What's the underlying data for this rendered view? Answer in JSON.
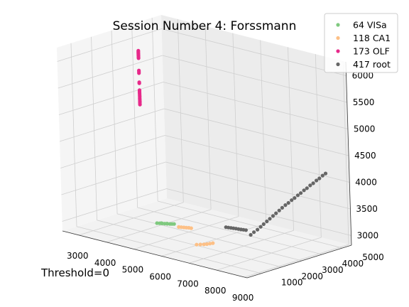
{
  "chart_data": {
    "type": "scatter",
    "title": "Session Number 4: Forssmann",
    "annotation": "Threshold=0",
    "axes_3d": true,
    "grid": true,
    "legend_placement": "top-right",
    "x_ticks": [
      "3000",
      "4000",
      "5000",
      "6000",
      "7000",
      "8000",
      "9000"
    ],
    "y_ticks": [
      "1000",
      "2000",
      "3000",
      "4000",
      "5000"
    ],
    "z_ticks": [
      "3000",
      "3500",
      "4000",
      "4500",
      "5000",
      "5500",
      "6000"
    ],
    "xlim": [
      2400,
      9100
    ],
    "ylim": [
      300,
      5450
    ],
    "zlim": [
      2820,
      6260
    ],
    "series": [
      {
        "name": "64 VISa",
        "color": "#7fc97f",
        "x": [
          4480,
          4560,
          4640,
          4720,
          4800,
          4880,
          4940,
          5000,
          4600,
          4780
        ],
        "y": [
          2150,
          2170,
          2190,
          2210,
          2230,
          2250,
          2270,
          2290,
          2200,
          2240
        ],
        "z": [
          3020,
          3025,
          3030,
          3035,
          3040,
          3045,
          3050,
          3055,
          3030,
          3040
        ]
      },
      {
        "name": "118 CA1",
        "color": "#fdc086",
        "x": [
          5200,
          5280,
          5360,
          5440,
          5520,
          5600,
          6580,
          6680,
          6780,
          6860,
          6940,
          7020
        ],
        "y": [
          2250,
          2265,
          2280,
          2295,
          2310,
          2320,
          1250,
          1300,
          1340,
          1380,
          1420,
          1460
        ],
        "z": [
          3030,
          3035,
          3040,
          3045,
          3050,
          3052,
          3000,
          3010,
          3020,
          3030,
          3045,
          3060
        ]
      },
      {
        "name": "173 OLF",
        "color": "#e7298a",
        "x": [
          3820,
          3820,
          3820,
          3820,
          3820,
          3820,
          3820,
          3820,
          3820,
          3820,
          3820,
          3820,
          3820,
          3820,
          3820,
          3820,
          3820,
          3820,
          3820,
          3820,
          3820,
          3820,
          3820
        ],
        "y": [
          2380,
          2380,
          2380,
          2380,
          2380,
          2380,
          2380,
          2380,
          2380,
          2380,
          2380,
          2380,
          2380,
          2380,
          2380,
          2380,
          2380,
          2380,
          2380,
          2380,
          2380,
          2380,
          2380
        ],
        "z": [
          5130,
          5160,
          5190,
          5220,
          5250,
          5280,
          5310,
          5340,
          5370,
          5400,
          5530,
          5550,
          5720,
          5745,
          5770,
          6000,
          6020,
          6040,
          6060,
          6080,
          6100,
          6120,
          6140
        ]
      },
      {
        "name": "417 root",
        "color": "#666666",
        "x": [
          6400,
          6480,
          6560,
          6640,
          6720,
          6800,
          6880,
          6960,
          7040,
          7560,
          7700,
          7820,
          7940,
          8060,
          8180,
          8300,
          8420,
          8540,
          8660,
          8780,
          8900,
          9020,
          7620,
          7760,
          7880,
          8000,
          8120,
          8240,
          8360,
          8480,
          8600,
          8720,
          8840,
          8960
        ],
        "y": [
          2950,
          2965,
          2980,
          2995,
          3010,
          3025,
          3040,
          3055,
          3070,
          2600,
          2750,
          2900,
          3050,
          3200,
          3350,
          3500,
          3650,
          3800,
          3950,
          4100,
          4250,
          4400,
          2680,
          2830,
          2980,
          3130,
          3280,
          3430,
          3580,
          3730,
          3880,
          4030,
          4180,
          4330
        ],
        "z": [
          3100,
          3102,
          3104,
          3106,
          3108,
          3110,
          3112,
          3114,
          3116,
          3150,
          3250,
          3350,
          3450,
          3550,
          3650,
          3740,
          3830,
          3920,
          4010,
          4100,
          4190,
          4280,
          3200,
          3300,
          3400,
          3500,
          3600,
          3700,
          3790,
          3880,
          3970,
          4060,
          4150,
          4240
        ]
      }
    ]
  }
}
